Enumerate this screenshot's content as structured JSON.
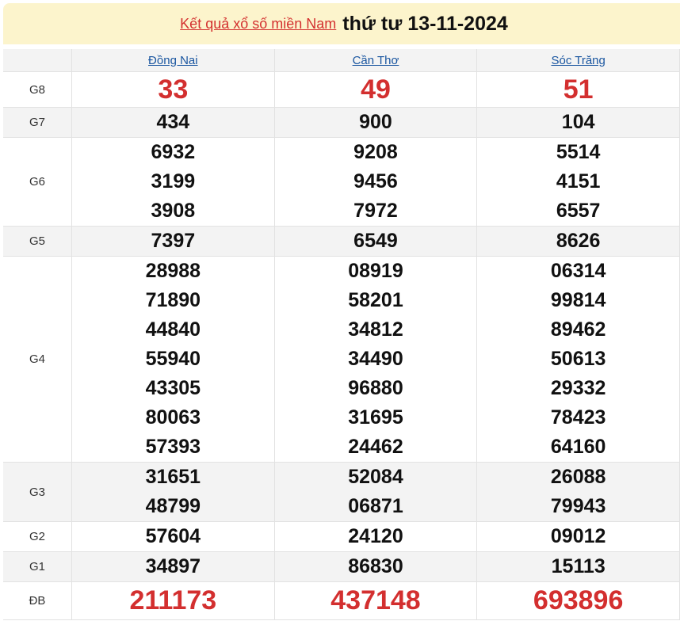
{
  "header": {
    "link": "Kết quả xổ số miền Nam",
    "date": "thứ tư 13-11-2024"
  },
  "provinces": [
    "Đồng Nai",
    "Cần Thơ",
    "Sóc Trăng"
  ],
  "rows": [
    {
      "label": "G8",
      "values": [
        [
          "33"
        ],
        [
          "49"
        ],
        [
          "51"
        ]
      ]
    },
    {
      "label": "G7",
      "values": [
        [
          "434"
        ],
        [
          "900"
        ],
        [
          "104"
        ]
      ]
    },
    {
      "label": "G6",
      "values": [
        [
          "6932",
          "3199",
          "3908"
        ],
        [
          "9208",
          "9456",
          "7972"
        ],
        [
          "5514",
          "4151",
          "6557"
        ]
      ]
    },
    {
      "label": "G5",
      "values": [
        [
          "7397"
        ],
        [
          "6549"
        ],
        [
          "8626"
        ]
      ]
    },
    {
      "label": "G4",
      "values": [
        [
          "28988",
          "71890",
          "44840",
          "55940",
          "43305",
          "80063",
          "57393"
        ],
        [
          "08919",
          "58201",
          "34812",
          "34490",
          "96880",
          "31695",
          "24462"
        ],
        [
          "06314",
          "99814",
          "89462",
          "50613",
          "29332",
          "78423",
          "64160"
        ]
      ]
    },
    {
      "label": "G3",
      "values": [
        [
          "31651",
          "48799"
        ],
        [
          "52084",
          "06871"
        ],
        [
          "26088",
          "79943"
        ]
      ]
    },
    {
      "label": "G2",
      "values": [
        [
          "57604"
        ],
        [
          "24120"
        ],
        [
          "09012"
        ]
      ]
    },
    {
      "label": "G1",
      "values": [
        [
          "34897"
        ],
        [
          "86830"
        ],
        [
          "15113"
        ]
      ]
    },
    {
      "label": "ĐB",
      "values": [
        [
          "211173"
        ],
        [
          "437148"
        ],
        [
          "693896"
        ]
      ]
    }
  ],
  "colors": {
    "accent": "#d32f2f",
    "link": "#1a56a0",
    "title_bg": "#fcf4cc"
  }
}
